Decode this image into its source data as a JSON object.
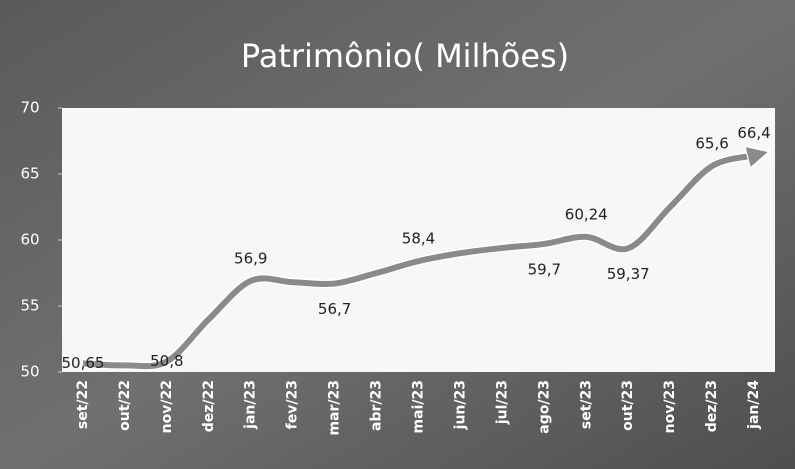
{
  "chart_data": {
    "type": "line",
    "title": "Patrimônio( Milhões)",
    "categories": [
      "set/22",
      "out/22",
      "nov/22",
      "dez/22",
      "jan/23",
      "fev/23",
      "mar/23",
      "abr/23",
      "mai/23",
      "jun/23",
      "jul/23",
      "ago/23",
      "set/23",
      "out/23",
      "nov/23",
      "dez/23",
      "jan/24"
    ],
    "series": [
      {
        "name": "Patrimônio",
        "color": "#8a8a8a",
        "values": [
          50.65,
          50.5,
          50.8,
          54,
          56.9,
          56.8,
          56.7,
          57.5,
          58.4,
          59,
          59.4,
          59.7,
          60.24,
          59.37,
          62.5,
          65.6,
          66.4
        ],
        "value_labels": [
          "50,65",
          null,
          "50,8",
          null,
          "56,9",
          null,
          "56,7",
          null,
          "58,4",
          null,
          null,
          "59,7",
          "60,24",
          "59,37",
          null,
          "65,6",
          "66,4"
        ]
      }
    ],
    "ylim": [
      50,
      70
    ],
    "yticks": [
      50,
      55,
      60,
      65,
      70
    ]
  }
}
